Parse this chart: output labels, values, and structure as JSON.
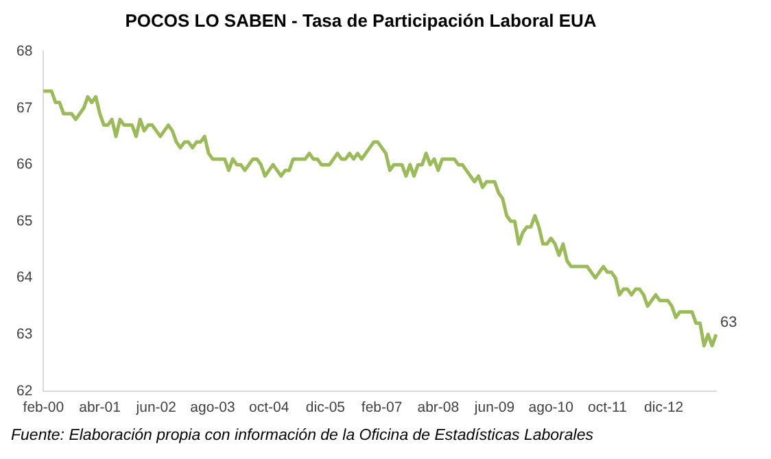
{
  "chart_data": {
    "type": "line",
    "title": "POCOS LO SABEN - Tasa de Participación Laboral EUA",
    "categories": [
      "feb-00",
      null,
      null,
      null,
      null,
      null,
      null,
      null,
      null,
      null,
      null,
      null,
      null,
      null,
      "abr-01",
      null,
      null,
      null,
      null,
      null,
      null,
      null,
      null,
      null,
      null,
      null,
      null,
      null,
      "jun-02",
      null,
      null,
      null,
      null,
      null,
      null,
      null,
      null,
      null,
      null,
      null,
      null,
      null,
      "ago-03",
      null,
      null,
      null,
      null,
      null,
      null,
      null,
      null,
      null,
      null,
      null,
      null,
      null,
      "oct-04",
      null,
      null,
      null,
      null,
      null,
      null,
      null,
      null,
      null,
      null,
      null,
      null,
      null,
      "dic-05",
      null,
      null,
      null,
      null,
      null,
      null,
      null,
      null,
      null,
      null,
      null,
      null,
      null,
      "feb-07",
      null,
      null,
      null,
      null,
      null,
      null,
      null,
      null,
      null,
      null,
      null,
      null,
      null,
      "abr-08",
      null,
      null,
      null,
      null,
      null,
      null,
      null,
      null,
      null,
      null,
      null,
      null,
      null,
      "jun-09",
      null,
      null,
      null,
      null,
      null,
      null,
      null,
      null,
      null,
      null,
      null,
      null,
      null,
      "ago-10",
      null,
      null,
      null,
      null,
      null,
      null,
      null,
      null,
      null,
      null,
      null,
      null,
      null,
      "oct-11",
      null,
      null,
      null,
      null,
      null,
      null,
      null,
      null,
      null,
      null,
      null,
      null,
      null,
      "dic-12",
      null,
      null,
      null,
      null,
      null,
      null,
      null,
      null,
      null,
      null,
      null,
      null,
      null
    ],
    "series": [
      {
        "color": "#9bbb59",
        "values": [
          67.3,
          67.3,
          67.3,
          67.1,
          67.1,
          66.9,
          66.9,
          66.9,
          66.8,
          66.9,
          67.0,
          67.2,
          67.1,
          67.2,
          66.9,
          66.7,
          66.7,
          66.8,
          66.5,
          66.8,
          66.7,
          66.7,
          66.7,
          66.5,
          66.8,
          66.6,
          66.7,
          66.7,
          66.6,
          66.5,
          66.6,
          66.7,
          66.6,
          66.4,
          66.3,
          66.4,
          66.4,
          66.3,
          66.4,
          66.4,
          66.5,
          66.2,
          66.1,
          66.1,
          66.1,
          66.1,
          65.9,
          66.1,
          66.0,
          66.0,
          65.9,
          66.0,
          66.1,
          66.1,
          66.0,
          65.8,
          65.9,
          66.0,
          65.9,
          65.8,
          65.9,
          65.9,
          66.1,
          66.1,
          66.1,
          66.1,
          66.2,
          66.1,
          66.1,
          66.0,
          66.0,
          66.0,
          66.1,
          66.2,
          66.1,
          66.1,
          66.2,
          66.1,
          66.2,
          66.1,
          66.2,
          66.3,
          66.4,
          66.4,
          66.3,
          66.2,
          65.9,
          66.0,
          66.0,
          66.0,
          65.8,
          66.0,
          65.8,
          66.0,
          66.0,
          66.2,
          66.0,
          66.1,
          65.9,
          66.1,
          66.1,
          66.1,
          66.1,
          66.0,
          66.0,
          65.9,
          65.8,
          65.7,
          65.8,
          65.6,
          65.7,
          65.7,
          65.7,
          65.5,
          65.4,
          65.1,
          65.0,
          65.0,
          64.6,
          64.8,
          64.9,
          64.9,
          65.1,
          64.9,
          64.6,
          64.6,
          64.7,
          64.6,
          64.4,
          64.6,
          64.3,
          64.2,
          64.2,
          64.2,
          64.2,
          64.2,
          64.1,
          64.0,
          64.1,
          64.2,
          64.1,
          64.1,
          64.0,
          63.7,
          63.8,
          63.8,
          63.7,
          63.8,
          63.8,
          63.7,
          63.5,
          63.6,
          63.7,
          63.6,
          63.6,
          63.6,
          63.5,
          63.3,
          63.4,
          63.4,
          63.4,
          63.4,
          63.2,
          63.2,
          62.8,
          63.0,
          62.8,
          63.0
        ],
        "value_labels": [
          null,
          null,
          null,
          null,
          null,
          null,
          null,
          null,
          null,
          null,
          null,
          null,
          null,
          null,
          null,
          null,
          null,
          null,
          null,
          null,
          null,
          null,
          null,
          null,
          null,
          null,
          null,
          null,
          null,
          null,
          null,
          null,
          null,
          null,
          null,
          null,
          null,
          null,
          null,
          null,
          null,
          null,
          null,
          null,
          null,
          null,
          null,
          null,
          null,
          null,
          null,
          null,
          null,
          null,
          null,
          null,
          null,
          null,
          null,
          null,
          null,
          null,
          null,
          null,
          null,
          null,
          null,
          null,
          null,
          null,
          null,
          null,
          null,
          null,
          null,
          null,
          null,
          null,
          null,
          null,
          null,
          null,
          null,
          null,
          null,
          null,
          null,
          null,
          null,
          null,
          null,
          null,
          null,
          null,
          null,
          null,
          null,
          null,
          null,
          null,
          null,
          null,
          null,
          null,
          null,
          null,
          null,
          null,
          null,
          null,
          null,
          null,
          null,
          null,
          null,
          null,
          null,
          null,
          null,
          null,
          null,
          null,
          null,
          null,
          null,
          null,
          null,
          null,
          null,
          null,
          null,
          null,
          null,
          null,
          null,
          null,
          null,
          null,
          null,
          null,
          null,
          null,
          null,
          null,
          null,
          null,
          null,
          null,
          null,
          null,
          null,
          null,
          null,
          null,
          null,
          null,
          null,
          null,
          null,
          null,
          null,
          null,
          null,
          null,
          null,
          null,
          null,
          "63"
        ]
      }
    ],
    "ylim": [
      62,
      68
    ],
    "yticks": [
      62,
      63,
      64,
      65,
      66,
      67,
      68
    ],
    "grid": false,
    "legend": false,
    "marker": "none",
    "line_style": "solid",
    "annotations": [
      "Fuente: Elaboración propia con información de la Oficina de Estadísticas Laborales"
    ]
  }
}
